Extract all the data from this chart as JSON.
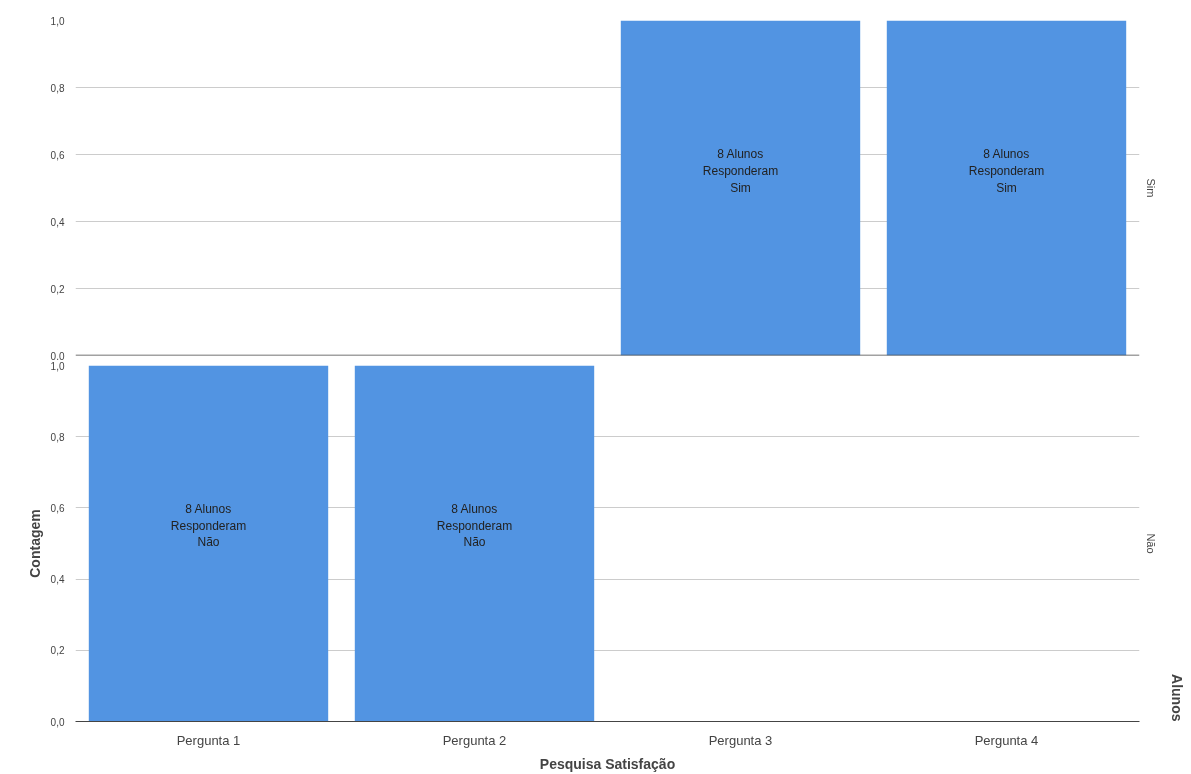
{
  "chart_data": [
    {
      "type": "bar",
      "categories": [
        null,
        null,
        null,
        null
      ],
      "values": [
        0,
        0,
        1,
        1
      ],
      "color": "#5294e2",
      "annotations": [
        "8 Alunos\nResponderam\nSim",
        "8 Alunos\nResponderam\nSim"
      ],
      "y2label": "Sim",
      "ylim": [
        0,
        1
      ],
      "yticks": [
        {
          "value": 0,
          "label": "0,0"
        },
        {
          "value": 0.2,
          "label": "0,2"
        },
        {
          "value": 0.4,
          "label": "0,4"
        },
        {
          "value": 0.6,
          "label": "0,6"
        },
        {
          "value": 0.8,
          "label": "0,8"
        },
        {
          "value": 1,
          "label": "1,0"
        }
      ],
      "grid": "y",
      "tick_labels": "y"
    },
    {
      "type": "bar",
      "categories": [
        "Pergunta 1",
        "Pergunta 2",
        "Pergunta 3",
        "Pergunta 4"
      ],
      "values": [
        1,
        1,
        0,
        0
      ],
      "color": "#5294e2",
      "y2label": "Não",
      "ylabel": "Contagem",
      "xlabel": "Pesquisa Satisfação",
      "annotations": [
        "8 Alunos\nResponderam\nNão",
        "8 Alunos\nResponderam\nNão",
        "Alunos"
      ],
      "ylim": [
        0,
        1
      ],
      "yticks": [
        {
          "value": 0,
          "label": "0,0"
        },
        {
          "value": 0.2,
          "label": "0,2"
        },
        {
          "value": 0.4,
          "label": "0,4"
        },
        {
          "value": 0.6,
          "label": "0,6"
        },
        {
          "value": 0.8,
          "label": "0,8"
        },
        {
          "value": 1,
          "label": "1,0"
        }
      ],
      "grid": "y"
    }
  ]
}
